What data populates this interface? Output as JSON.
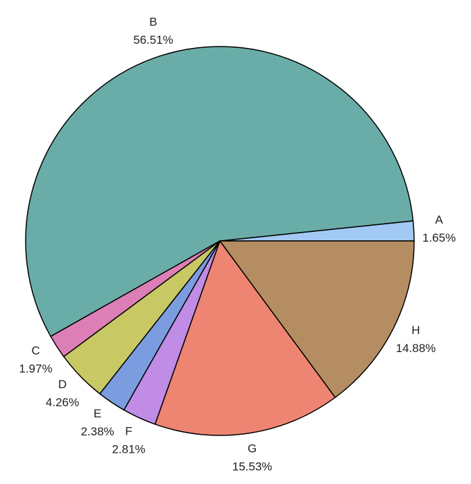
{
  "chart_data": {
    "type": "pie",
    "categories": [
      "A",
      "B",
      "C",
      "D",
      "E",
      "F",
      "G",
      "H"
    ],
    "values": [
      1.65,
      56.51,
      1.97,
      4.26,
      2.38,
      2.81,
      15.53,
      14.88
    ],
    "value_labels": [
      "1.65%",
      "56.51%",
      "1.97%",
      "4.26%",
      "2.38%",
      "2.81%",
      "15.53%",
      "14.88%"
    ],
    "colors": [
      "#a1c9f4",
      "#6aada8",
      "#db7fb6",
      "#c8c865",
      "#7b9de0",
      "#c08ce6",
      "#ee8572",
      "#b48e62"
    ]
  }
}
